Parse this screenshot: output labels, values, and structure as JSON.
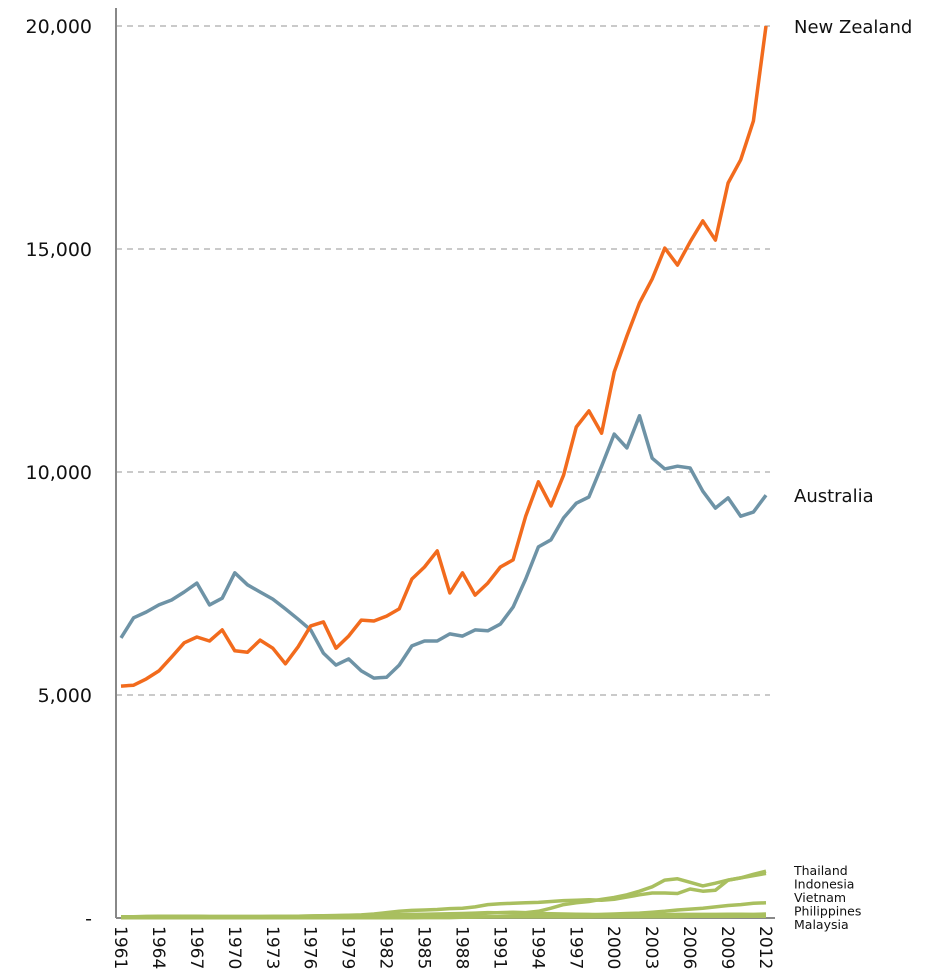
{
  "chart_data": {
    "type": "line",
    "x": [
      1961,
      1962,
      1963,
      1964,
      1965,
      1966,
      1967,
      1968,
      1969,
      1970,
      1971,
      1972,
      1973,
      1974,
      1975,
      1976,
      1977,
      1978,
      1979,
      1980,
      1981,
      1982,
      1983,
      1984,
      1985,
      1986,
      1987,
      1988,
      1989,
      1990,
      1991,
      1992,
      1993,
      1994,
      1995,
      1996,
      1997,
      1998,
      1999,
      2000,
      2001,
      2002,
      2003,
      2004,
      2005,
      2006,
      2007,
      2008,
      2009,
      2010,
      2011,
      2012
    ],
    "xlim": [
      1961,
      2012
    ],
    "xticks": [
      1961,
      1964,
      1967,
      1970,
      1973,
      1976,
      1979,
      1982,
      1985,
      1988,
      1991,
      1994,
      1997,
      2000,
      2003,
      2006,
      2009,
      2012
    ],
    "ylim": [
      0,
      20000
    ],
    "yticks": [
      {
        "value": 0,
        "label": "-"
      },
      {
        "value": 5000,
        "label": "5,000"
      },
      {
        "value": 10000,
        "label": "10,000"
      },
      {
        "value": 15000,
        "label": "15,000"
      },
      {
        "value": 20000,
        "label": "20,000"
      }
    ],
    "grid": true,
    "series": [
      {
        "name": "New Zealand",
        "color": "#f26b1d",
        "values": [
          5200,
          5220,
          5360,
          5540,
          5850,
          6170,
          6300,
          6210,
          6460,
          5990,
          5960,
          6230,
          6050,
          5700,
          6080,
          6550,
          6640,
          6050,
          6320,
          6680,
          6660,
          6770,
          6930,
          7600,
          7870,
          8230,
          7290,
          7740,
          7240,
          7510,
          7870,
          8030,
          9010,
          9780,
          9240,
          9930,
          11010,
          11370,
          10870,
          12240,
          13050,
          13790,
          14330,
          15020,
          14640,
          15160,
          15630,
          15200,
          16480,
          17000,
          17870,
          20000
        ]
      },
      {
        "name": "Australia",
        "color": "#6e93a6",
        "values": [
          6280,
          6730,
          6860,
          7020,
          7130,
          7310,
          7510,
          7020,
          7170,
          7740,
          7470,
          7310,
          7150,
          6930,
          6700,
          6460,
          5940,
          5670,
          5810,
          5540,
          5380,
          5400,
          5670,
          6100,
          6210,
          6210,
          6370,
          6320,
          6460,
          6440,
          6590,
          6970,
          7600,
          8320,
          8480,
          8970,
          9300,
          9440,
          10130,
          10850,
          10540,
          11260,
          10310,
          10070,
          10130,
          10090,
          9570,
          9190,
          9420,
          9010,
          9100,
          9480
        ]
      },
      {
        "name": "Thailand",
        "color": "#a9bf5f",
        "values": [
          20,
          20,
          25,
          30,
          30,
          35,
          35,
          30,
          30,
          30,
          30,
          30,
          35,
          35,
          40,
          45,
          50,
          55,
          60,
          70,
          90,
          120,
          150,
          170,
          180,
          190,
          210,
          220,
          250,
          300,
          320,
          330,
          340,
          350,
          370,
          390,
          400,
          410,
          400,
          420,
          470,
          520,
          560,
          560,
          550,
          650,
          600,
          620,
          850,
          900,
          980,
          1050
        ]
      },
      {
        "name": "Indonesia",
        "color": "#a9bf5f",
        "values": [
          10,
          10,
          10,
          10,
          10,
          10,
          10,
          10,
          10,
          10,
          10,
          10,
          10,
          15,
          15,
          20,
          20,
          20,
          25,
          30,
          30,
          35,
          40,
          45,
          50,
          55,
          60,
          70,
          90,
          110,
          120,
          130,
          120,
          150,
          220,
          300,
          340,
          370,
          420,
          460,
          520,
          600,
          700,
          850,
          880,
          800,
          720,
          780,
          850,
          900,
          950,
          1000
        ]
      },
      {
        "name": "Vietnam",
        "color": "#a9bf5f",
        "values": [
          5,
          5,
          5,
          5,
          5,
          5,
          5,
          5,
          5,
          5,
          5,
          5,
          5,
          5,
          5,
          5,
          5,
          5,
          5,
          5,
          5,
          5,
          5,
          5,
          10,
          10,
          10,
          15,
          20,
          25,
          30,
          35,
          40,
          45,
          50,
          55,
          60,
          70,
          80,
          90,
          100,
          110,
          130,
          150,
          180,
          200,
          220,
          250,
          280,
          300,
          330,
          340
        ]
      },
      {
        "name": "Philippines",
        "color": "#a9bf5f",
        "values": [
          30,
          30,
          35,
          40,
          40,
          40,
          40,
          35,
          35,
          35,
          35,
          35,
          35,
          35,
          40,
          45,
          50,
          50,
          55,
          60,
          65,
          70,
          75,
          80,
          85,
          90,
          95,
          100,
          110,
          120,
          115,
          110,
          105,
          100,
          95,
          90,
          85,
          80,
          75,
          70,
          70,
          70,
          75,
          75,
          80,
          80,
          80,
          80,
          85,
          85,
          80,
          90
        ]
      },
      {
        "name": "Malaysia",
        "color": "#a9bf5f",
        "values": [
          10,
          10,
          10,
          10,
          10,
          10,
          10,
          10,
          10,
          10,
          10,
          10,
          10,
          10,
          10,
          10,
          10,
          10,
          10,
          10,
          15,
          15,
          15,
          15,
          20,
          20,
          20,
          20,
          25,
          25,
          25,
          25,
          25,
          25,
          25,
          25,
          25,
          25,
          30,
          30,
          30,
          30,
          30,
          30,
          30,
          35,
          35,
          35,
          35,
          40,
          40,
          40
        ]
      }
    ]
  }
}
